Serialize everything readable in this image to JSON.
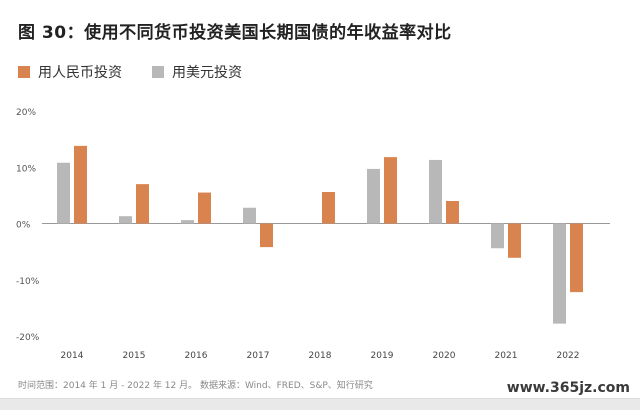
{
  "title": "图 30：使用不同货币投资美国长期国债的年收益率对比",
  "footnote": "时间范围：2014 年 1 月 - 2022 年 12 月。 数据来源：Wind、FRED、S&P、知行研究",
  "watermark": "www.365jz.com",
  "colors": {
    "orange": "#d9844f",
    "gray": "#b8b8b8"
  },
  "chart_data": {
    "type": "bar",
    "categories": [
      "2014",
      "2015",
      "2016",
      "2017",
      "2018",
      "2019",
      "2020",
      "2021",
      "2022"
    ],
    "series": [
      {
        "name": "用美元投资",
        "color": "#b8b8b8",
        "values": [
          10.8,
          1.3,
          0.6,
          2.8,
          0,
          9.7,
          11.3,
          -4.4,
          -17.8
        ]
      },
      {
        "name": "用人民币投资",
        "color": "#d9844f",
        "values": [
          13.8,
          7.0,
          5.5,
          -4.2,
          5.6,
          11.8,
          4.0,
          -6.1,
          -12.2
        ]
      }
    ],
    "legend_order": [
      "用人民币投资",
      "用美元投资"
    ],
    "yticks": [
      "20%",
      "10%",
      "0%",
      "-10%",
      "-20%"
    ],
    "ylim": [
      -20,
      20
    ],
    "grid": false,
    "legend_position": "top-left"
  }
}
